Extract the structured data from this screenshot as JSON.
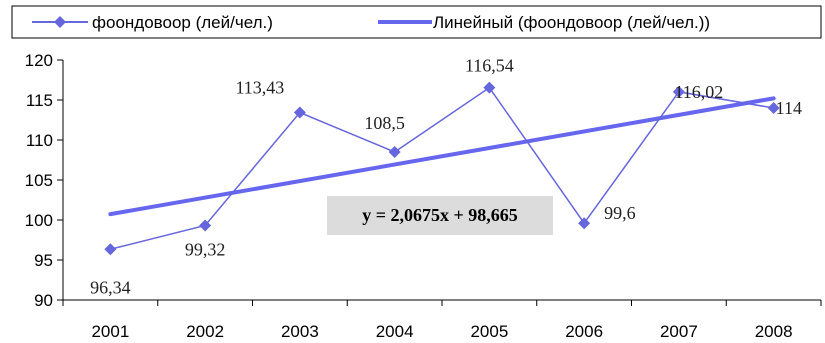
{
  "chart_data": {
    "type": "line",
    "title": "",
    "xlabel": "",
    "ylabel": "",
    "categories": [
      "2001",
      "2002",
      "2003",
      "2004",
      "2005",
      "2006",
      "2007",
      "2008"
    ],
    "series": [
      {
        "name": "фоондовоор (лей/чел.)",
        "values": [
          96.34,
          99.32,
          113.43,
          108.5,
          116.54,
          99.6,
          116.02,
          114
        ],
        "data_labels": [
          "96,34",
          "99,32",
          "113,43",
          "108,5",
          "116,54",
          "99,6",
          "116,02",
          "114"
        ],
        "color": "#6666dd",
        "marker": "diamond"
      }
    ],
    "trendline": {
      "name": "Линейный (фоондовоор (лей/чел.))",
      "type": "linear",
      "slope": 2.0675,
      "intercept": 98.665,
      "equation": "y = 2,0675x + 98,665",
      "color": "#6666ee"
    },
    "ylim": [
      90,
      120
    ],
    "yticks": [
      90,
      95,
      100,
      105,
      110,
      115,
      120
    ],
    "legend_position": "top",
    "grid": false
  }
}
